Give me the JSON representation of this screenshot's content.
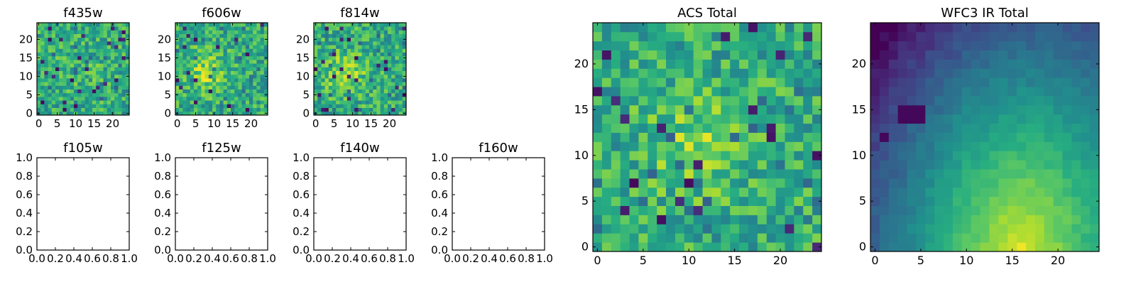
{
  "chart_data": [
    {
      "id": "f435w",
      "type": "heatmap",
      "title": "f435w",
      "grid_size": 25,
      "xlim": [
        -0.5,
        24.5
      ],
      "ylim": [
        -0.5,
        24.5
      ],
      "xticks": [
        0,
        5,
        10,
        15,
        20
      ],
      "yticks": [
        0,
        5,
        10,
        15,
        20
      ],
      "colormap": "viridis",
      "pattern": "uniform noise, mostly green-yellow with scattered dark pixels"
    },
    {
      "id": "f606w",
      "type": "heatmap",
      "title": "f606w",
      "grid_size": 25,
      "xlim": [
        -0.5,
        24.5
      ],
      "ylim": [
        -0.5,
        24.5
      ],
      "xticks": [
        0,
        5,
        10,
        15,
        20
      ],
      "yticks": [
        0,
        5,
        10,
        15,
        20
      ],
      "colormap": "viridis",
      "pattern": "noise with brighter yellow blob near centre-left"
    },
    {
      "id": "f814w",
      "type": "heatmap",
      "title": "f814w",
      "grid_size": 25,
      "xlim": [
        -0.5,
        24.5
      ],
      "ylim": [
        -0.5,
        24.5
      ],
      "xticks": [
        0,
        5,
        10,
        15,
        20
      ],
      "yticks": [
        0,
        5,
        10,
        15,
        20
      ],
      "colormap": "viridis",
      "pattern": "noise with yellow blob near centre-left"
    },
    {
      "id": "f105w",
      "type": "empty",
      "title": "f105w",
      "xlim": [
        0,
        1
      ],
      "ylim": [
        0,
        1
      ],
      "xticks": [
        "0.0",
        "0.2",
        "0.4",
        "0.6",
        "0.8",
        "1.0"
      ],
      "yticks": [
        "0.0",
        "0.2",
        "0.4",
        "0.6",
        "0.8",
        "1.0"
      ]
    },
    {
      "id": "f125w",
      "type": "empty",
      "title": "f125w",
      "xlim": [
        0,
        1
      ],
      "ylim": [
        0,
        1
      ],
      "xticks": [
        "0.0",
        "0.2",
        "0.4",
        "0.6",
        "0.8",
        "1.0"
      ],
      "yticks": [
        "0.0",
        "0.2",
        "0.4",
        "0.6",
        "0.8",
        "1.0"
      ]
    },
    {
      "id": "f140w",
      "type": "empty",
      "title": "f140w",
      "xlim": [
        0,
        1
      ],
      "ylim": [
        0,
        1
      ],
      "xticks": [
        "0.0",
        "0.2",
        "0.4",
        "0.6",
        "0.8",
        "1.0"
      ],
      "yticks": [
        "0.0",
        "0.2",
        "0.4",
        "0.6",
        "0.8",
        "1.0"
      ]
    },
    {
      "id": "f160w",
      "type": "empty",
      "title": "f160w",
      "xlim": [
        0,
        1
      ],
      "ylim": [
        0,
        1
      ],
      "xticks": [
        "0.0",
        "0.2",
        "0.4",
        "0.6",
        "0.8",
        "1.0"
      ],
      "yticks": [
        "0.0",
        "0.2",
        "0.4",
        "0.6",
        "0.8",
        "1.0"
      ]
    },
    {
      "id": "acs",
      "type": "heatmap",
      "title": "ACS Total",
      "grid_size": 25,
      "xlim": [
        -0.5,
        24.5
      ],
      "ylim": [
        -0.5,
        24.5
      ],
      "xticks": [
        0,
        5,
        10,
        15,
        20
      ],
      "yticks": [
        0,
        5,
        10,
        15,
        20
      ],
      "colormap": "viridis",
      "pattern": "noisy green field with brighter yellow region around x 8-14, y 8-14"
    },
    {
      "id": "wfc3",
      "type": "heatmap",
      "title": "WFC3 IR Total",
      "grid_size": 25,
      "xlim": [
        -0.5,
        24.5
      ],
      "ylim": [
        -0.5,
        24.5
      ],
      "xticks": [
        0,
        5,
        10,
        15,
        20
      ],
      "yticks": [
        0,
        5,
        10,
        15,
        20
      ],
      "colormap": "viridis",
      "pattern": "smooth gradient: dark purple top-left rising to yellow peak near x 16, y 0; dark spot near x 4, y 15"
    }
  ]
}
